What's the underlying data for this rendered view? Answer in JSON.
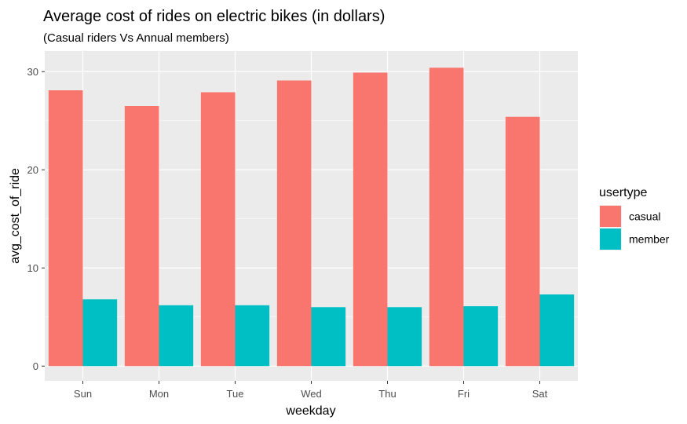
{
  "chart_data": {
    "type": "bar",
    "title": "Average cost of rides on electric bikes (in dollars)",
    "subtitle": "(Casual riders Vs Annual members)",
    "xlabel": "weekday",
    "ylabel": "avg_cost_of_ride",
    "categories": [
      "Sun",
      "Mon",
      "Tue",
      "Wed",
      "Thu",
      "Fri",
      "Sat"
    ],
    "series": [
      {
        "name": "casual",
        "color": "#F8766D",
        "values": [
          28.1,
          26.5,
          27.9,
          29.1,
          29.9,
          30.4,
          25.4
        ]
      },
      {
        "name": "member",
        "color": "#00BFC4",
        "values": [
          6.8,
          6.2,
          6.2,
          6.0,
          6.0,
          6.1,
          7.3
        ]
      }
    ],
    "ylim": [
      -1.5,
      32.1
    ],
    "yticks": [
      0,
      10,
      20,
      30
    ],
    "grid": true,
    "legend": {
      "title": "usertype",
      "position": "right"
    },
    "panel_background": "#EBEBEB",
    "grid_color": "#FFFFFF"
  }
}
